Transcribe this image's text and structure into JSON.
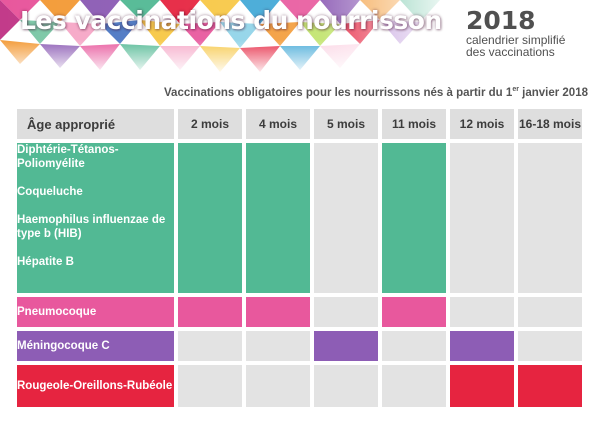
{
  "header": {
    "title": "Les vaccinations du nourrisson",
    "year": "2018",
    "subtitle_line1": "calendrier simplifié",
    "subtitle_line2": "des vaccinations"
  },
  "intro": {
    "text_before": "Vaccinations obligatoires pour les nourrissons nés à partir du 1",
    "superscript": "er",
    "text_after": " janvier 2018"
  },
  "table": {
    "age_header": "Âge approprié",
    "columns": [
      "2 mois",
      "4 mois",
      "5 mois",
      "11 mois",
      "12 mois",
      "16-18 mois"
    ],
    "groups": [
      {
        "color": "#52b994",
        "labels": [
          "Diphtérie-Tétanos-Poliomyélite",
          "Coqueluche",
          "Haemophilus influenzae de type b (HIB)",
          "Hépatite B"
        ],
        "doses": [
          true,
          true,
          false,
          true,
          false,
          false
        ]
      },
      {
        "color": "#e8589d",
        "labels": [
          "Pneumocoque"
        ],
        "doses": [
          true,
          true,
          false,
          true,
          false,
          false
        ]
      },
      {
        "color": "#8d5db5",
        "labels": [
          "Méningocoque C"
        ],
        "doses": [
          false,
          false,
          true,
          false,
          true,
          false
        ]
      },
      {
        "color": "#e62440",
        "labels": [
          "Rougeole-Oreillons-Rubéole"
        ],
        "doses": [
          false,
          false,
          false,
          false,
          true,
          true
        ]
      }
    ]
  },
  "colors": {
    "green": "#52b994",
    "pink": "#e8589d",
    "purple": "#8d5db5",
    "red": "#e62440",
    "empty": "#e3e3e3",
    "header": "#dedede"
  }
}
